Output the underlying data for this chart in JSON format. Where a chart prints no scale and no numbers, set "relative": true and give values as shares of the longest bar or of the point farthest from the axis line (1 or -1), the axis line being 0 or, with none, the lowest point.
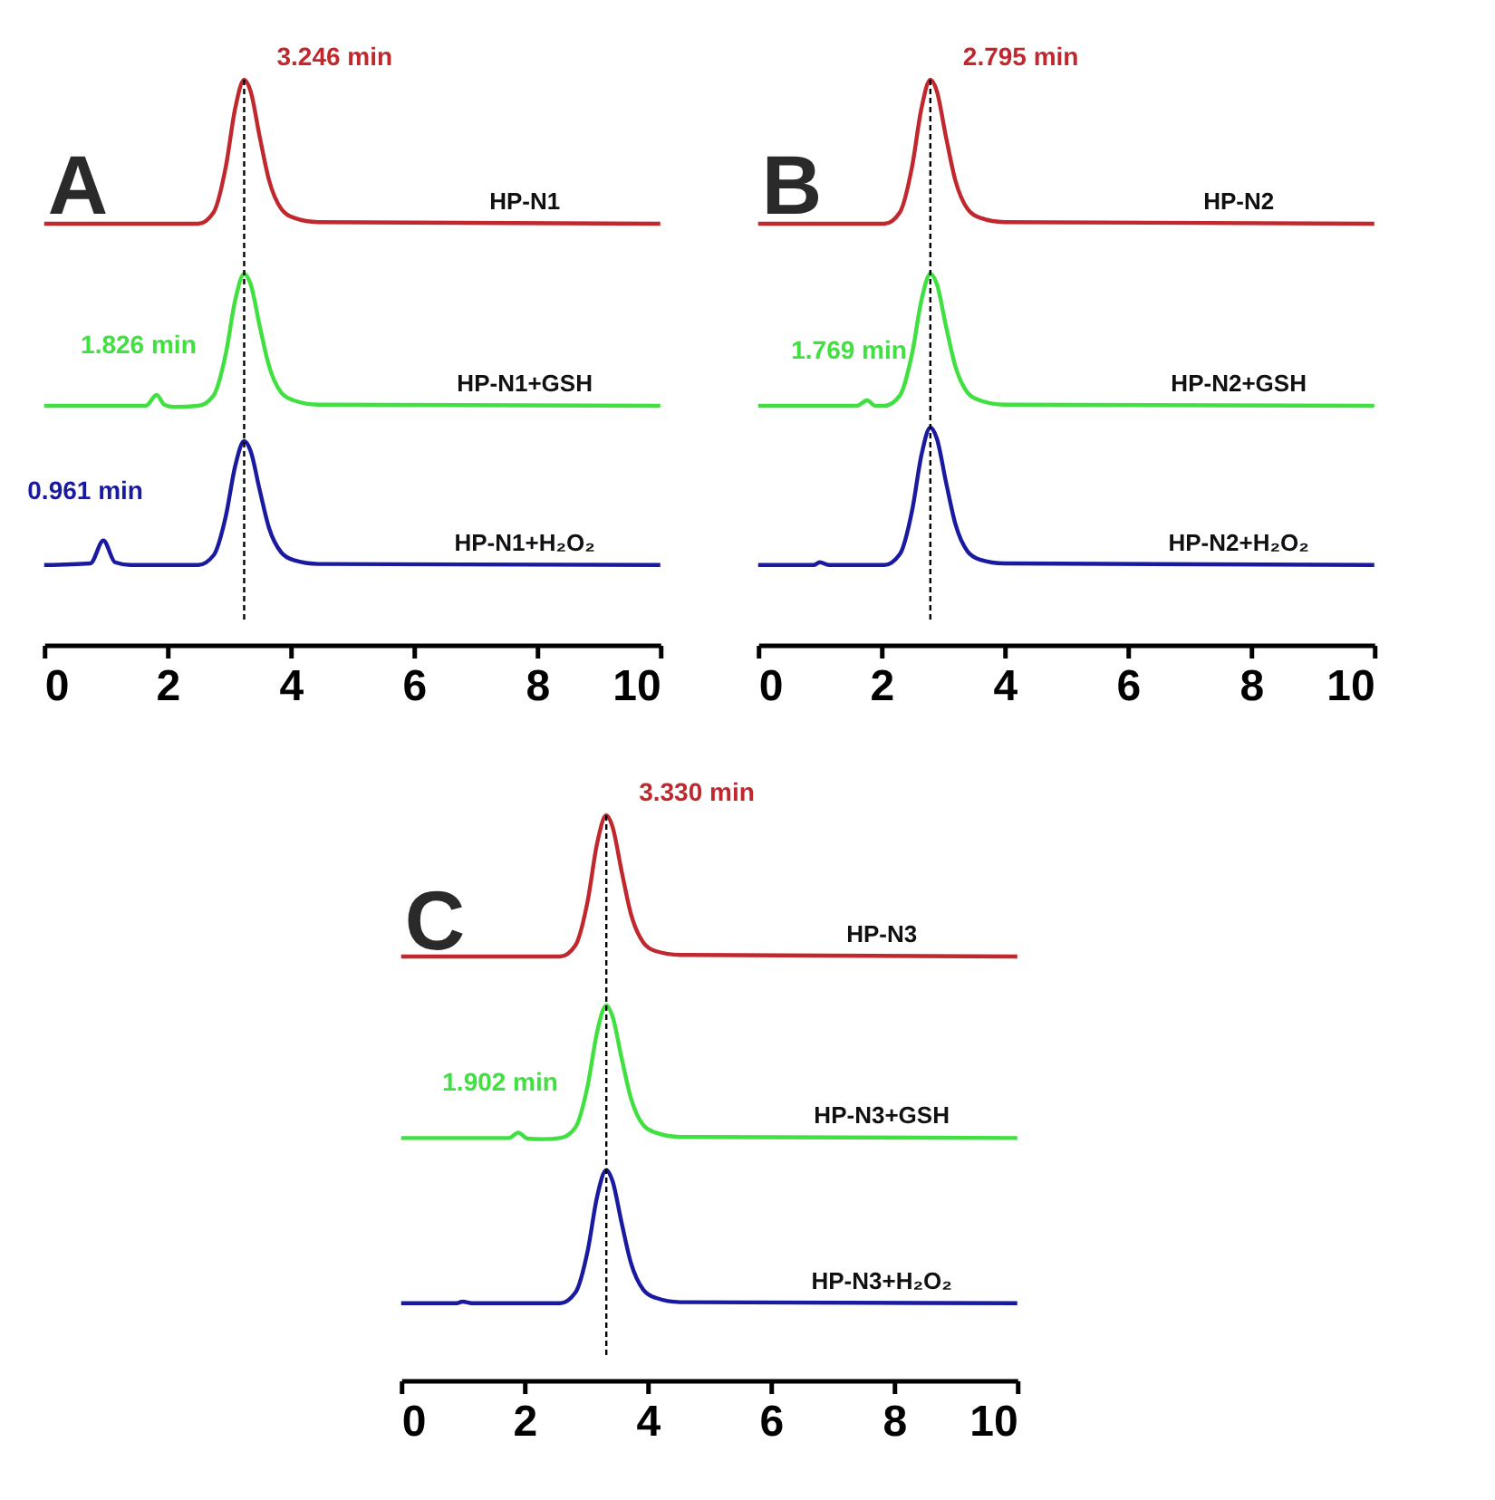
{
  "chart_data": [
    {
      "type": "line",
      "title": "A",
      "relative": true,
      "tick_labels": "x",
      "line_style": "solid",
      "xlim": [
        0,
        10
      ],
      "xticks": [
        0,
        2,
        4,
        6,
        8,
        10
      ],
      "ref_lines": [
        {
          "axis": "x",
          "value": 3.246,
          "color": "#000000",
          "line_style": "dashed"
        }
      ],
      "annotations": [
        {
          "text": "3.246 min",
          "x": 3.246,
          "y": 1
        },
        {
          "text": "1.826 min",
          "x": 1.826,
          "y": 0.42
        },
        {
          "text": "0.961 min",
          "x": 0.961,
          "y": 0.152
        }
      ],
      "series": [
        {
          "name": "HP-N1",
          "color": "#c0282d",
          "x": [
            0,
            2.5,
            2.75,
            2.95,
            3.1,
            3.246,
            3.35,
            3.5,
            3.65,
            3.85,
            4.05,
            4.45,
            10
          ],
          "values": [
            0.735,
            0.735,
            0.756,
            0.841,
            0.947,
            1,
            0.979,
            0.894,
            0.815,
            0.762,
            0.746,
            0.738,
            0.735
          ]
        },
        {
          "name": "HP-N1+GSH",
          "color": "#3fe03f",
          "x": [
            0,
            1.65,
            1.826,
            1.95,
            2.1,
            2.5,
            2.75,
            2.95,
            3.1,
            3.246,
            3.35,
            3.5,
            3.65,
            3.85,
            4.05,
            4.45,
            10
          ],
          "values": [
            0.4,
            0.4,
            0.42,
            0.402,
            0.398,
            0.4,
            0.419,
            0.497,
            0.594,
            0.643,
            0.624,
            0.546,
            0.473,
            0.424,
            0.41,
            0.402,
            0.4
          ]
        },
        {
          "name": "HP-N1+H₂O₂",
          "color": "#1a1aa0",
          "x": [
            0,
            0.75,
            0.961,
            1.15,
            1.4,
            2.5,
            2.75,
            2.95,
            3.1,
            3.246,
            3.35,
            3.5,
            3.65,
            3.85,
            4.05,
            4.45,
            10
          ],
          "values": [
            0.107,
            0.11,
            0.152,
            0.112,
            0.107,
            0.107,
            0.125,
            0.198,
            0.289,
            0.335,
            0.317,
            0.244,
            0.175,
            0.13,
            0.116,
            0.109,
            0.107
          ]
        }
      ]
    },
    {
      "type": "line",
      "title": "B",
      "relative": true,
      "tick_labels": "x",
      "line_style": "solid",
      "xlim": [
        0,
        10
      ],
      "xticks": [
        0,
        2,
        4,
        6,
        8,
        10
      ],
      "ref_lines": [
        {
          "axis": "x",
          "value": 2.795,
          "color": "#000000",
          "line_style": "dashed"
        }
      ],
      "annotations": [
        {
          "text": "2.795 min",
          "x": 2.795,
          "y": 1
        },
        {
          "text": "1.769 min",
          "x": 1.769,
          "y": 0.41
        }
      ],
      "series": [
        {
          "name": "HP-N2",
          "color": "#c0282d",
          "x": [
            0,
            2.05,
            2.3,
            2.5,
            2.65,
            2.795,
            2.9,
            3.05,
            3.2,
            3.4,
            3.6,
            4.0,
            10
          ],
          "values": [
            0.735,
            0.735,
            0.756,
            0.841,
            0.947,
            1,
            0.979,
            0.894,
            0.815,
            0.762,
            0.746,
            0.738,
            0.735
          ]
        },
        {
          "name": "HP-N2+GSH",
          "color": "#3fe03f",
          "x": [
            0,
            1.6,
            1.769,
            1.9,
            2.05,
            2.3,
            2.5,
            2.65,
            2.795,
            2.9,
            3.05,
            3.2,
            3.4,
            3.6,
            4.0,
            10
          ],
          "values": [
            0.4,
            0.4,
            0.41,
            0.4,
            0.4,
            0.419,
            0.497,
            0.594,
            0.643,
            0.624,
            0.546,
            0.473,
            0.424,
            0.41,
            0.402,
            0.4
          ]
        },
        {
          "name": "HP-N2+H₂O₂",
          "color": "#1a1aa0",
          "x": [
            0,
            0.9,
            1.0,
            1.15,
            2.05,
            2.3,
            2.5,
            2.65,
            2.795,
            2.9,
            3.05,
            3.2,
            3.4,
            3.6,
            4.0,
            10
          ],
          "values": [
            0.107,
            0.107,
            0.112,
            0.107,
            0.107,
            0.127,
            0.208,
            0.309,
            0.36,
            0.34,
            0.259,
            0.183,
            0.132,
            0.117,
            0.11,
            0.107
          ]
        }
      ]
    },
    {
      "type": "line",
      "title": "C",
      "relative": true,
      "tick_labels": "x",
      "line_style": "solid",
      "xlim": [
        0,
        10
      ],
      "xticks": [
        0,
        2,
        4,
        6,
        8,
        10
      ],
      "ref_lines": [
        {
          "axis": "x",
          "value": 3.33,
          "color": "#000000",
          "line_style": "dashed"
        }
      ],
      "annotations": [
        {
          "text": "3.330 min",
          "x": 3.33,
          "y": 1
        },
        {
          "text": "1.902 min",
          "x": 1.902,
          "y": 0.416
        }
      ],
      "series": [
        {
          "name": "HP-N3",
          "color": "#c0282d",
          "x": [
            0,
            2.58,
            2.83,
            3.03,
            3.18,
            3.33,
            3.43,
            3.58,
            3.73,
            3.93,
            4.13,
            4.53,
            10
          ],
          "values": [
            0.74,
            0.74,
            0.761,
            0.844,
            0.948,
            1,
            0.979,
            0.896,
            0.818,
            0.766,
            0.75,
            0.743,
            0.74
          ]
        },
        {
          "name": "HP-N3+GSH",
          "color": "#3fe03f",
          "x": [
            0,
            1.75,
            1.902,
            2.05,
            2.3,
            2.58,
            2.83,
            3.03,
            3.18,
            3.33,
            3.43,
            3.58,
            3.73,
            3.93,
            4.13,
            4.53,
            10
          ],
          "values": [
            0.406,
            0.406,
            0.416,
            0.405,
            0.404,
            0.406,
            0.426,
            0.504,
            0.601,
            0.65,
            0.63,
            0.552,
            0.479,
            0.43,
            0.416,
            0.408,
            0.406
          ]
        },
        {
          "name": "HP-N3+H₂O₂",
          "color": "#1a1aa0",
          "x": [
            0,
            0.9,
            1.0,
            1.15,
            2.58,
            2.83,
            3.03,
            3.18,
            3.33,
            3.43,
            3.58,
            3.73,
            3.93,
            4.13,
            4.53,
            10
          ],
          "values": [
            0.102,
            0.102,
            0.105,
            0.102,
            0.102,
            0.122,
            0.2,
            0.298,
            0.347,
            0.327,
            0.249,
            0.176,
            0.127,
            0.112,
            0.104,
            0.102
          ]
        }
      ]
    }
  ]
}
